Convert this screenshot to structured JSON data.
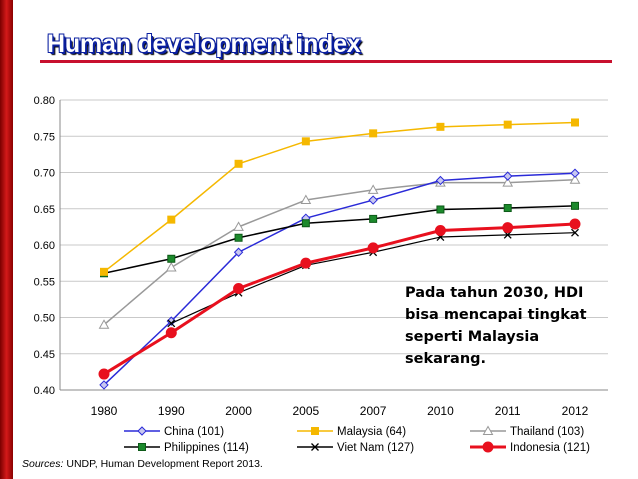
{
  "page": {
    "title": "Human development index",
    "annotation_lines": [
      "Pada tahun 2030, HDI",
      "bisa mencapai tingkat",
      "seperti Malaysia",
      "sekarang."
    ],
    "source_label": "Sources:",
    "source_text": " UNDP, Human Development Report 2013.",
    "colors": {
      "accent_red": "#c8102e",
      "title_blue": "#0a1fa0"
    }
  },
  "chart_data": {
    "type": "line",
    "categories": [
      "1980",
      "1990",
      "2000",
      "2005",
      "2007",
      "2010",
      "2011",
      "2012"
    ],
    "ylim": [
      0.4,
      0.8
    ],
    "y_ticks": [
      "0.40",
      "0.45",
      "0.50",
      "0.55",
      "0.60",
      "0.65",
      "0.70",
      "0.75",
      "0.80"
    ],
    "grid": true,
    "legend_position": "bottom",
    "series": [
      {
        "name": "China (101)",
        "color": "#2a2ad8",
        "marker": "diamond",
        "width": 1.5,
        "values": [
          0.407,
          0.495,
          0.59,
          0.637,
          0.662,
          0.689,
          0.695,
          0.699
        ]
      },
      {
        "name": "Malaysia (64)",
        "color": "#f5b800",
        "marker": "square",
        "width": 1.5,
        "values": [
          0.563,
          0.635,
          0.712,
          0.743,
          0.754,
          0.763,
          0.766,
          0.769
        ]
      },
      {
        "name": "Thailand (103)",
        "color": "#999999",
        "marker": "triangle",
        "width": 1.5,
        "values": [
          0.49,
          0.569,
          0.625,
          0.662,
          0.676,
          0.686,
          0.686,
          0.69
        ]
      },
      {
        "name": "Philippines (114)",
        "color": "#000000",
        "marker": "square-green",
        "width": 1.5,
        "values": [
          0.561,
          0.581,
          0.61,
          0.63,
          0.636,
          0.649,
          0.651,
          0.654
        ]
      },
      {
        "name": "Viet Nam (127)",
        "color": "#000000",
        "marker": "x",
        "width": 1.2,
        "values": [
          null,
          0.492,
          0.534,
          0.572,
          0.59,
          0.611,
          0.614,
          0.617
        ]
      },
      {
        "name": "Indonesia (121)",
        "color": "#e8101e",
        "marker": "circle",
        "width": 3,
        "values": [
          0.422,
          0.479,
          0.54,
          0.575,
          0.596,
          0.62,
          0.624,
          0.629
        ]
      }
    ]
  }
}
